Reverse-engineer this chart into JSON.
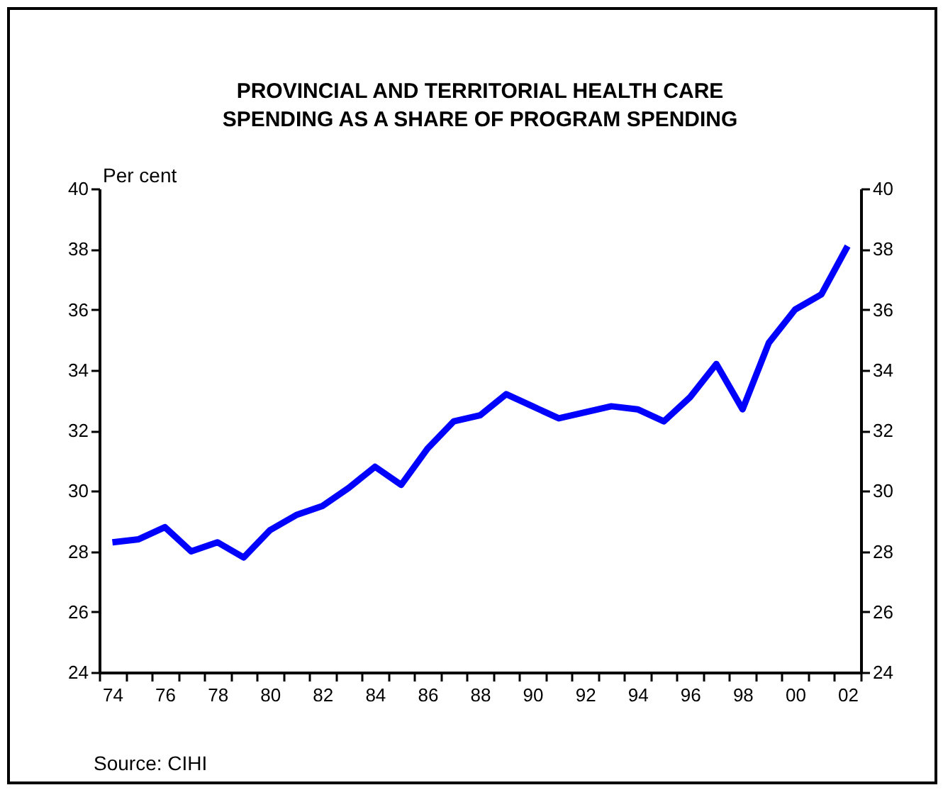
{
  "chart_data": {
    "type": "line",
    "title": "PROVINCIAL AND TERRITORIAL HEALTH CARE\nSPENDING AS A SHARE OF PROGRAM SPENDING",
    "ylabel": "Per cent",
    "annotations": [
      "Source: CIHI"
    ],
    "x": [
      1974,
      1975,
      1976,
      1977,
      1978,
      1979,
      1980,
      1981,
      1982,
      1983,
      1984,
      1985,
      1986,
      1987,
      1988,
      1989,
      1990,
      1991,
      1992,
      1993,
      1994,
      1995,
      1996,
      1997,
      1998,
      1999,
      2000,
      2001,
      2002
    ],
    "series": [
      {
        "color": "#0000ff",
        "values": [
          28.3,
          28.4,
          28.8,
          28.0,
          28.3,
          27.8,
          28.7,
          29.2,
          29.5,
          30.1,
          30.8,
          30.2,
          31.4,
          32.3,
          32.5,
          33.2,
          32.8,
          32.4,
          32.6,
          32.8,
          32.7,
          32.3,
          33.1,
          34.2,
          32.7,
          34.9,
          36.0,
          36.5,
          38.1
        ]
      }
    ],
    "xlim": [
      1973.5,
      2002.5
    ],
    "xticks": [
      {
        "value": 1973.5,
        "label": null
      },
      {
        "value": 1974,
        "label": "74"
      },
      {
        "value": 1974.5,
        "label": null
      },
      {
        "value": 1975.5,
        "label": null
      },
      {
        "value": 1976,
        "label": "76"
      },
      {
        "value": 1976.5,
        "label": null
      },
      {
        "value": 1977.5,
        "label": null
      },
      {
        "value": 1978,
        "label": "78"
      },
      {
        "value": 1978.5,
        "label": null
      },
      {
        "value": 1979.5,
        "label": null
      },
      {
        "value": 1980,
        "label": "80"
      },
      {
        "value": 1980.5,
        "label": null
      },
      {
        "value": 1981.5,
        "label": null
      },
      {
        "value": 1982,
        "label": "82"
      },
      {
        "value": 1982.5,
        "label": null
      },
      {
        "value": 1983.5,
        "label": null
      },
      {
        "value": 1984,
        "label": "84"
      },
      {
        "value": 1984.5,
        "label": null
      },
      {
        "value": 1985.5,
        "label": null
      },
      {
        "value": 1986,
        "label": "86"
      },
      {
        "value": 1986.5,
        "label": null
      },
      {
        "value": 1987.5,
        "label": null
      },
      {
        "value": 1988,
        "label": "88"
      },
      {
        "value": 1988.5,
        "label": null
      },
      {
        "value": 1989.5,
        "label": null
      },
      {
        "value": 1990,
        "label": "90"
      },
      {
        "value": 1990.5,
        "label": null
      },
      {
        "value": 1991.5,
        "label": null
      },
      {
        "value": 1992,
        "label": "92"
      },
      {
        "value": 1992.5,
        "label": null
      },
      {
        "value": 1993.5,
        "label": null
      },
      {
        "value": 1994,
        "label": "94"
      },
      {
        "value": 1994.5,
        "label": null
      },
      {
        "value": 1995.5,
        "label": null
      },
      {
        "value": 1996,
        "label": "96"
      },
      {
        "value": 1996.5,
        "label": null
      },
      {
        "value": 1997.5,
        "label": null
      },
      {
        "value": 1998,
        "label": "98"
      },
      {
        "value": 1998.5,
        "label": null
      },
      {
        "value": 1999.5,
        "label": null
      },
      {
        "value": 2000,
        "label": "00"
      },
      {
        "value": 2000.5,
        "label": null
      },
      {
        "value": 2001.5,
        "label": null
      },
      {
        "value": 2002,
        "label": "02"
      },
      {
        "value": 2002.5,
        "label": null
      }
    ],
    "ylim": [
      24,
      40
    ],
    "yticks": [
      24,
      26,
      28,
      30,
      32,
      34,
      36,
      38,
      40
    ],
    "y2lim": [
      24,
      40
    ],
    "y2ticks": [
      24,
      26,
      28,
      30,
      32,
      34,
      36,
      38,
      40
    ],
    "grid": false,
    "legend": false,
    "marker": "none",
    "line_style": "solid"
  }
}
